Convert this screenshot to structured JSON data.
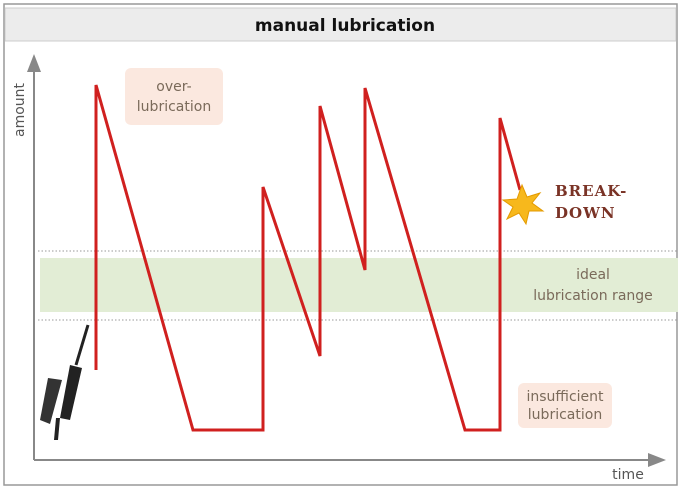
{
  "header": {
    "title": "manual lubrication"
  },
  "axes": {
    "y_label": "amount",
    "x_label": "time"
  },
  "regions": {
    "over": {
      "lines": [
        "over-",
        "lubrication"
      ]
    },
    "ideal": {
      "lines": [
        "ideal",
        "lubrication range"
      ]
    },
    "insufficient": {
      "lines": [
        "insufficient",
        "lubrication"
      ]
    }
  },
  "event": {
    "lines": [
      "BREAK-",
      "DOWN"
    ]
  }
}
